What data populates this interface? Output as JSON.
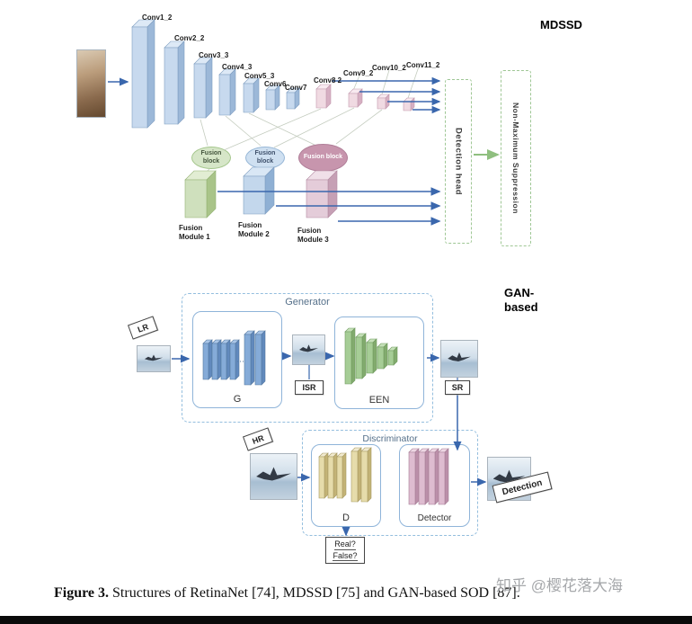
{
  "mdssd": {
    "title": "MDSSD",
    "conv_labels": [
      "Conv1_2",
      "Conv2_2",
      "Conv3_3",
      "Conv4_3",
      "Conv5_3",
      "Conv6",
      "Conv7",
      "Conv8 2",
      "Conv9_2",
      "Conv10_2",
      "Conv11_2"
    ],
    "fusion_block_label": "Fusion block",
    "fusion_modules": [
      "Fusion\nModule 1",
      "Fusion\nModule 2",
      "Fusion\nModule 3"
    ],
    "detection_head": "Detection head",
    "nms": "Non-Maximum Suppression"
  },
  "gan": {
    "title": "GAN-\nbased",
    "generator_label": "Generator",
    "g_label": "G",
    "een_label": "EEN",
    "discriminator_label": "Discriminator",
    "d_label": "D",
    "detector_label": "Detector",
    "lr": "LR",
    "isr": "ISR",
    "sr": "SR",
    "hr": "HR",
    "detection": "Detection",
    "real": "Real?",
    "false": "False?"
  },
  "caption": {
    "label": "Figure 3.",
    "text": " Structures of RetinaNet [74], MDSSD [75] and GAN-based SOD [87]."
  },
  "watermark": "知乎 @樱花落大海",
  "colors": {
    "arrow_blue": "#3a67ad",
    "mdssd_dashed_green": "#9fc795",
    "gan_dashed_blue": "#94bede",
    "conv_blue": "#c7d9ee",
    "conv_pink": "#f0dae2"
  }
}
